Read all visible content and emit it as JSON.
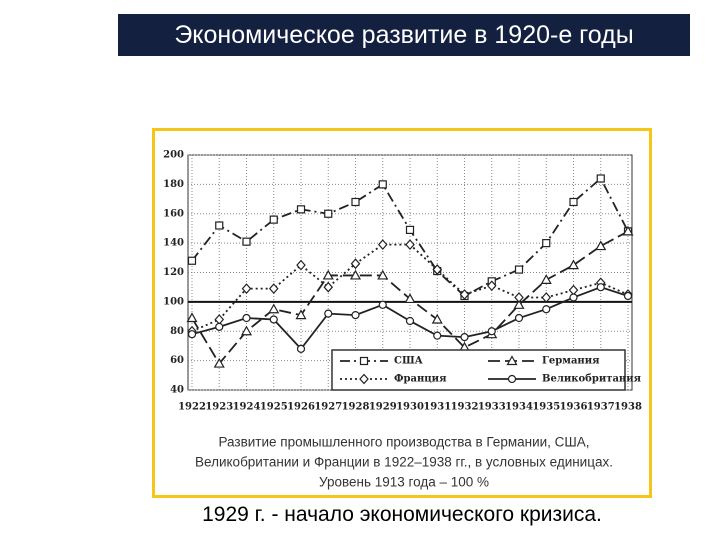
{
  "title": "Экономическое развитие в 1920-е годы",
  "chart_data": {
    "type": "line",
    "categories": [
      "1922",
      "1923",
      "1924",
      "1925",
      "1926",
      "1927",
      "1928",
      "1929",
      "1930",
      "1931",
      "1932",
      "1933",
      "1934",
      "1935",
      "1936",
      "1937",
      "1938"
    ],
    "series": [
      {
        "name": "США",
        "color": "#222222",
        "marker": "square",
        "dash": "10 4 2 4",
        "values": [
          128,
          152,
          141,
          156,
          163,
          160,
          168,
          180,
          149,
          121,
          104,
          114,
          122,
          140,
          168,
          184,
          148
        ]
      },
      {
        "name": "Германия",
        "color": "#222222",
        "marker": "triangle",
        "dash": "12 5",
        "values": [
          89,
          58,
          80,
          95,
          91,
          118,
          118,
          118,
          102,
          88,
          69,
          78,
          98,
          115,
          125,
          138,
          148
        ]
      },
      {
        "name": "Франция",
        "color": "#222222",
        "marker": "diamond",
        "dash": "2 3",
        "values": [
          80,
          88,
          109,
          109,
          125,
          110,
          126,
          139,
          139,
          122,
          105,
          111,
          103,
          103,
          108,
          113,
          105
        ]
      },
      {
        "name": "Великобритания",
        "color": "#222222",
        "marker": "circle",
        "dash": "none",
        "values": [
          78,
          83,
          89,
          88,
          68,
          92,
          91,
          98,
          87,
          77,
          76,
          80,
          89,
          95,
          103,
          110,
          104
        ]
      }
    ],
    "ylim": [
      40,
      200
    ],
    "yticks": [
      40,
      60,
      80,
      100,
      120,
      140,
      160,
      180,
      200
    ],
    "grid": true,
    "hline": 100,
    "note": [
      "Развитие промышленного производства в Германии, США,",
      "Великобритании и Франции в 1922–1938 гг., в условных единицах.",
      "Уровень 1913 года – 100 %"
    ]
  },
  "caption": "1929 г. - начало экономического кризиса."
}
